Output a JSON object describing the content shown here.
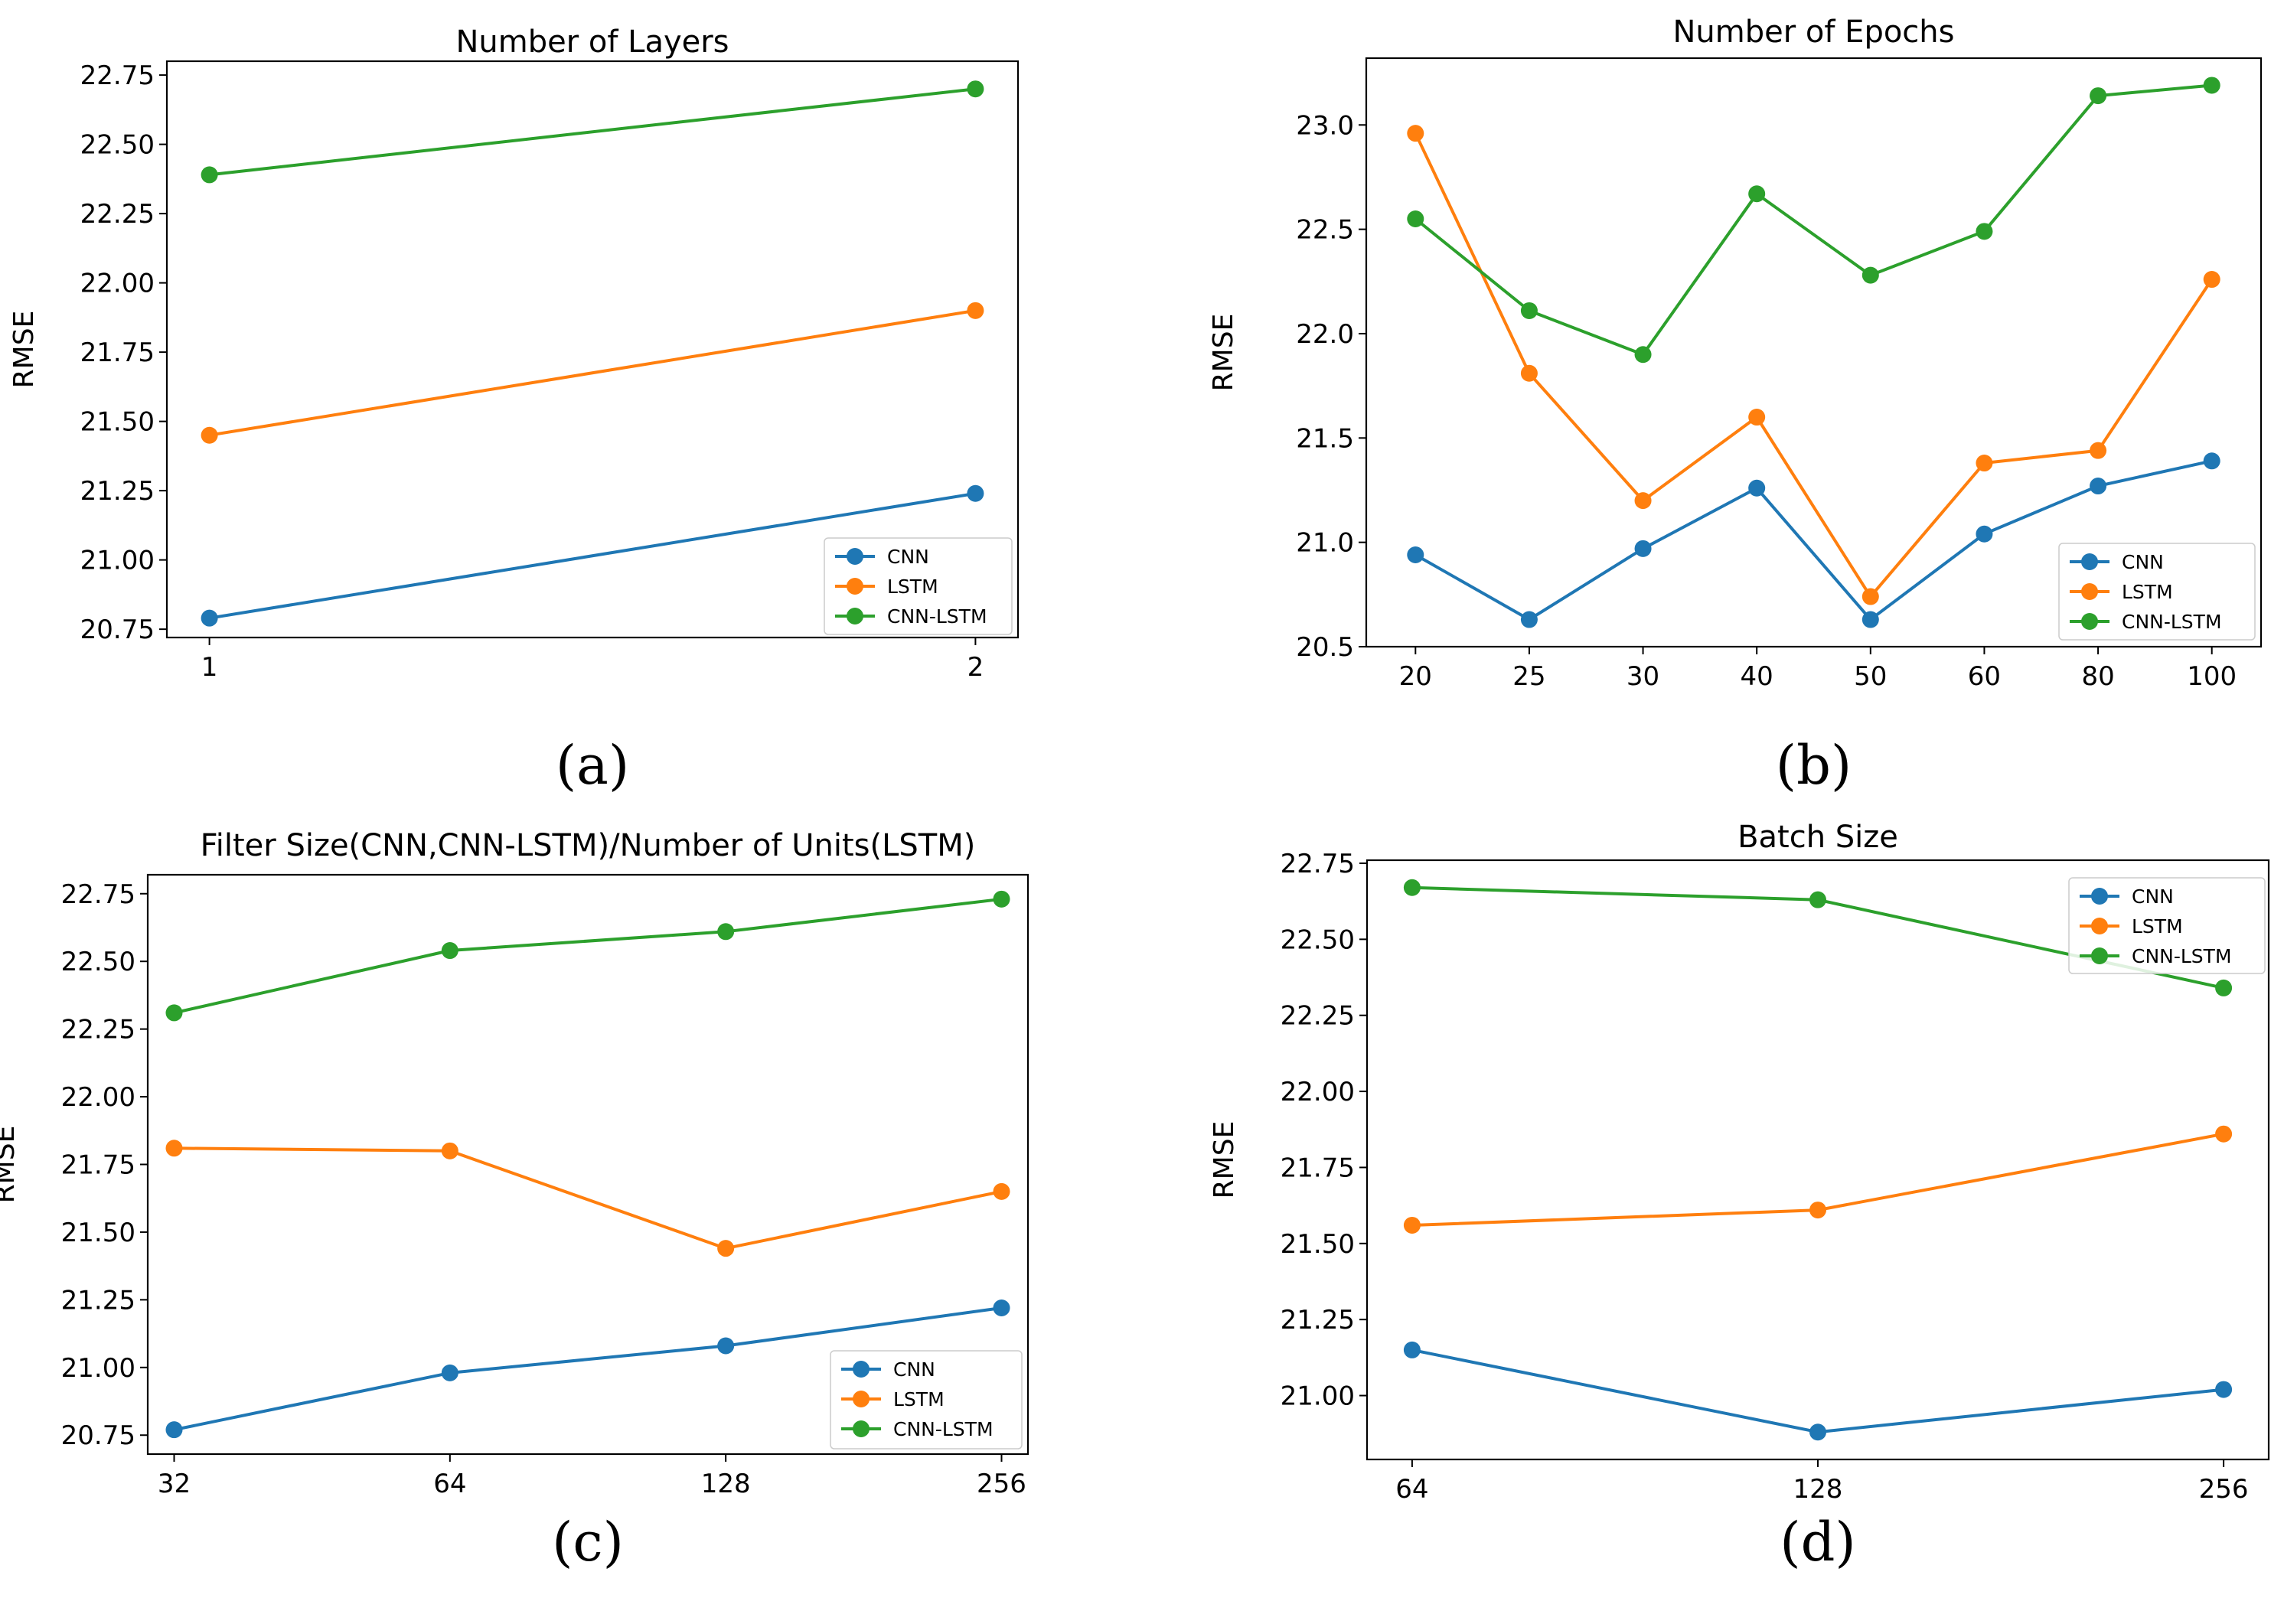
{
  "chart_data": [
    {
      "id": "a",
      "type": "line",
      "panel_label": "(a)",
      "title": "Number of Layers",
      "xlabel": "",
      "ylabel": "RMSE",
      "categories": [
        "1",
        "2"
      ],
      "yticks": [
        "20.75",
        "21.00",
        "21.25",
        "21.50",
        "21.75",
        "22.00",
        "22.25",
        "22.50",
        "22.75"
      ],
      "ylim": [
        20.72,
        22.8
      ],
      "legend_position": "lower-right",
      "series": [
        {
          "name": "CNN",
          "color": "#1f77b4",
          "values": [
            20.79,
            21.24
          ]
        },
        {
          "name": "LSTM",
          "color": "#ff7f0e",
          "values": [
            21.45,
            21.9
          ]
        },
        {
          "name": "CNN-LSTM",
          "color": "#2ca02c",
          "values": [
            22.39,
            22.7
          ]
        }
      ]
    },
    {
      "id": "b",
      "type": "line",
      "panel_label": "(b)",
      "title": "Number of Epochs",
      "xlabel": "",
      "ylabel": "RMSE",
      "categories": [
        "20",
        "25",
        "30",
        "40",
        "50",
        "60",
        "80",
        "100"
      ],
      "yticks": [
        "20.5",
        "21.0",
        "21.5",
        "22.0",
        "22.5",
        "23.0"
      ],
      "ylim": [
        20.5,
        23.32
      ],
      "legend_position": "lower-right",
      "series": [
        {
          "name": "CNN",
          "color": "#1f77b4",
          "values": [
            20.94,
            20.63,
            20.97,
            21.26,
            20.63,
            21.04,
            21.27,
            21.39
          ]
        },
        {
          "name": "LSTM",
          "color": "#ff7f0e",
          "values": [
            22.96,
            21.81,
            21.2,
            21.6,
            20.74,
            21.38,
            21.44,
            22.26
          ]
        },
        {
          "name": "CNN-LSTM",
          "color": "#2ca02c",
          "values": [
            22.55,
            22.11,
            21.9,
            22.67,
            22.28,
            22.49,
            23.14,
            23.19
          ]
        }
      ]
    },
    {
      "id": "c",
      "type": "line",
      "panel_label": "(c)",
      "title": "Filter Size(CNN,CNN-LSTM)/Number of Units(LSTM)",
      "xlabel": "",
      "ylabel": "RMSE",
      "categories": [
        "32",
        "64",
        "128",
        "256"
      ],
      "yticks": [
        "20.75",
        "21.00",
        "21.25",
        "21.50",
        "21.75",
        "22.00",
        "22.25",
        "22.50",
        "22.75"
      ],
      "ylim": [
        20.68,
        22.82
      ],
      "legend_position": "lower-right",
      "series": [
        {
          "name": "CNN",
          "color": "#1f77b4",
          "values": [
            20.77,
            20.98,
            21.08,
            21.22
          ]
        },
        {
          "name": "LSTM",
          "color": "#ff7f0e",
          "values": [
            21.81,
            21.8,
            21.44,
            21.65
          ]
        },
        {
          "name": "CNN-LSTM",
          "color": "#2ca02c",
          "values": [
            22.31,
            22.54,
            22.61,
            22.73
          ]
        }
      ]
    },
    {
      "id": "d",
      "type": "line",
      "panel_label": "(d)",
      "title": "Batch Size",
      "xlabel": "",
      "ylabel": "RMSE",
      "categories": [
        "64",
        "128",
        "256"
      ],
      "yticks": [
        "21.00",
        "21.25",
        "21.50",
        "21.75",
        "22.00",
        "22.25",
        "22.50",
        "22.75"
      ],
      "ylim": [
        20.79,
        22.76
      ],
      "legend_position": "upper-right",
      "series": [
        {
          "name": "CNN",
          "color": "#1f77b4",
          "values": [
            21.15,
            20.88,
            21.02
          ]
        },
        {
          "name": "LSTM",
          "color": "#ff7f0e",
          "values": [
            21.56,
            21.61,
            21.86
          ]
        },
        {
          "name": "CNN-LSTM",
          "color": "#2ca02c",
          "values": [
            22.67,
            22.63,
            22.34
          ]
        }
      ]
    }
  ]
}
